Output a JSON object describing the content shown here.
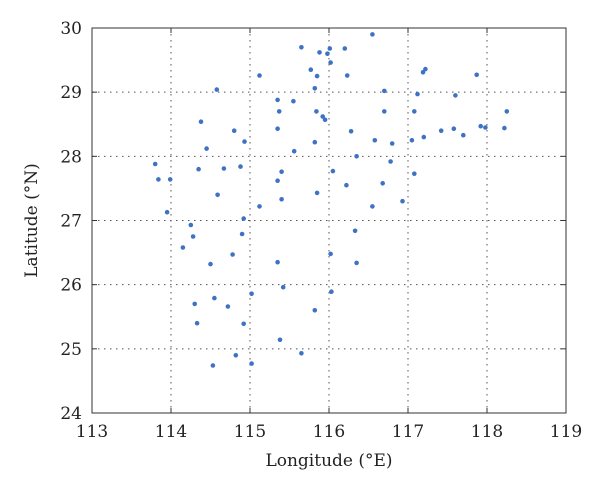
{
  "chart_data": {
    "type": "scatter",
    "title": "",
    "xlabel": "Longitude (°E)",
    "ylabel": "Latitude (°N)",
    "xlim": [
      113,
      119
    ],
    "ylim": [
      24,
      30
    ],
    "xticks": [
      113,
      114,
      115,
      116,
      117,
      118,
      119
    ],
    "yticks": [
      24,
      25,
      26,
      27,
      28,
      29,
      30
    ],
    "grid": true,
    "marker_color": "#3e73c3",
    "points": [
      {
        "x": 115.65,
        "y": 29.7
      },
      {
        "x": 116.55,
        "y": 29.9
      },
      {
        "x": 115.88,
        "y": 29.62
      },
      {
        "x": 115.98,
        "y": 29.6
      },
      {
        "x": 116.01,
        "y": 29.68
      },
      {
        "x": 116.2,
        "y": 29.68
      },
      {
        "x": 116.02,
        "y": 29.46
      },
      {
        "x": 115.77,
        "y": 29.35
      },
      {
        "x": 115.85,
        "y": 29.25
      },
      {
        "x": 116.23,
        "y": 29.26
      },
      {
        "x": 117.22,
        "y": 29.36
      },
      {
        "x": 117.19,
        "y": 29.31
      },
      {
        "x": 117.87,
        "y": 29.27
      },
      {
        "x": 115.12,
        "y": 29.26
      },
      {
        "x": 114.58,
        "y": 29.04
      },
      {
        "x": 115.82,
        "y": 29.06
      },
      {
        "x": 116.7,
        "y": 29.02
      },
      {
        "x": 117.12,
        "y": 28.97
      },
      {
        "x": 117.6,
        "y": 28.95
      },
      {
        "x": 115.35,
        "y": 28.88
      },
      {
        "x": 115.55,
        "y": 28.86
      },
      {
        "x": 115.37,
        "y": 28.7
      },
      {
        "x": 115.84,
        "y": 28.7
      },
      {
        "x": 116.7,
        "y": 28.7
      },
      {
        "x": 117.08,
        "y": 28.7
      },
      {
        "x": 118.25,
        "y": 28.7
      },
      {
        "x": 115.92,
        "y": 28.62
      },
      {
        "x": 115.95,
        "y": 28.57
      },
      {
        "x": 114.38,
        "y": 28.54
      },
      {
        "x": 114.8,
        "y": 28.4
      },
      {
        "x": 115.35,
        "y": 28.43
      },
      {
        "x": 116.28,
        "y": 28.39
      },
      {
        "x": 117.42,
        "y": 28.4
      },
      {
        "x": 117.58,
        "y": 28.43
      },
      {
        "x": 117.92,
        "y": 28.47
      },
      {
        "x": 117.98,
        "y": 28.45
      },
      {
        "x": 118.22,
        "y": 28.44
      },
      {
        "x": 117.7,
        "y": 28.33
      },
      {
        "x": 117.2,
        "y": 28.3
      },
      {
        "x": 117.05,
        "y": 28.25
      },
      {
        "x": 116.58,
        "y": 28.25
      },
      {
        "x": 116.8,
        "y": 28.2
      },
      {
        "x": 114.93,
        "y": 28.23
      },
      {
        "x": 115.82,
        "y": 28.22
      },
      {
        "x": 114.45,
        "y": 28.12
      },
      {
        "x": 115.56,
        "y": 28.08
      },
      {
        "x": 116.35,
        "y": 28.0
      },
      {
        "x": 116.78,
        "y": 27.92
      },
      {
        "x": 113.8,
        "y": 27.88
      },
      {
        "x": 114.35,
        "y": 27.8
      },
      {
        "x": 114.67,
        "y": 27.81
      },
      {
        "x": 114.88,
        "y": 27.84
      },
      {
        "x": 115.4,
        "y": 27.76
      },
      {
        "x": 116.05,
        "y": 27.77
      },
      {
        "x": 117.08,
        "y": 27.73
      },
      {
        "x": 113.84,
        "y": 27.64
      },
      {
        "x": 113.99,
        "y": 27.64
      },
      {
        "x": 115.35,
        "y": 27.62
      },
      {
        "x": 116.22,
        "y": 27.55
      },
      {
        "x": 116.68,
        "y": 27.58
      },
      {
        "x": 114.59,
        "y": 27.4
      },
      {
        "x": 115.85,
        "y": 27.43
      },
      {
        "x": 115.4,
        "y": 27.33
      },
      {
        "x": 116.93,
        "y": 27.3
      },
      {
        "x": 115.12,
        "y": 27.22
      },
      {
        "x": 116.55,
        "y": 27.22
      },
      {
        "x": 113.95,
        "y": 27.13
      },
      {
        "x": 114.92,
        "y": 27.03
      },
      {
        "x": 114.25,
        "y": 26.93
      },
      {
        "x": 116.33,
        "y": 26.84
      },
      {
        "x": 114.9,
        "y": 26.79
      },
      {
        "x": 114.28,
        "y": 26.75
      },
      {
        "x": 114.15,
        "y": 26.58
      },
      {
        "x": 114.78,
        "y": 26.47
      },
      {
        "x": 116.02,
        "y": 26.48
      },
      {
        "x": 114.5,
        "y": 26.32
      },
      {
        "x": 115.35,
        "y": 26.35
      },
      {
        "x": 116.35,
        "y": 26.34
      },
      {
        "x": 115.42,
        "y": 25.96
      },
      {
        "x": 116.03,
        "y": 25.89
      },
      {
        "x": 115.02,
        "y": 25.86
      },
      {
        "x": 114.55,
        "y": 25.79
      },
      {
        "x": 114.3,
        "y": 25.7
      },
      {
        "x": 114.72,
        "y": 25.66
      },
      {
        "x": 115.82,
        "y": 25.6
      },
      {
        "x": 114.33,
        "y": 25.4
      },
      {
        "x": 114.92,
        "y": 25.39
      },
      {
        "x": 115.38,
        "y": 25.14
      },
      {
        "x": 114.82,
        "y": 24.9
      },
      {
        "x": 115.65,
        "y": 24.93
      },
      {
        "x": 114.53,
        "y": 24.74
      },
      {
        "x": 115.02,
        "y": 24.77
      }
    ]
  }
}
